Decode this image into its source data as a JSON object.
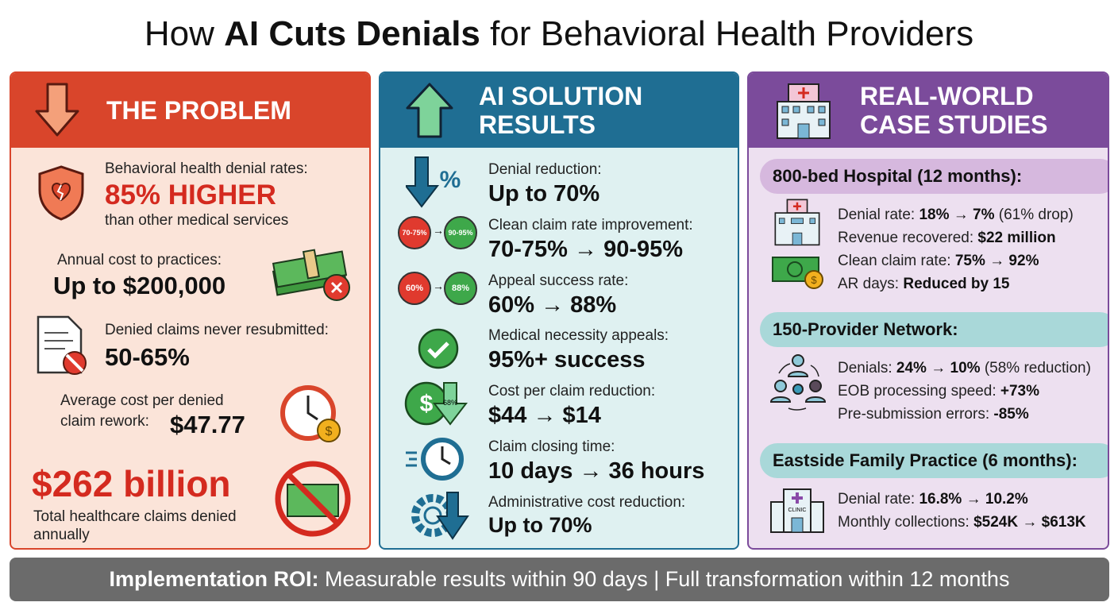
{
  "title": {
    "pre": "How ",
    "bold": "AI Cuts Denials",
    "post": " for Behavioral Health Providers"
  },
  "problem": {
    "header": "THE PROBLEM",
    "items": [
      {
        "label": "Behavioral health denial rates:",
        "value": "85% HIGHER",
        "sub": "than other medical services"
      },
      {
        "label": "Annual cost to practices:",
        "value": "Up to $200,000"
      },
      {
        "label": "Denied claims never resubmitted:",
        "value": "50-65%"
      },
      {
        "label": "Average cost per denied",
        "label2": "claim rework:",
        "value": "$47.77"
      },
      {
        "value": "$262 billion",
        "label": "Total healthcare claims denied",
        "label2": "annually"
      }
    ]
  },
  "solution": {
    "header1": "AI SOLUTION",
    "header2": "RESULTS",
    "items": [
      {
        "label": "Denial reduction:",
        "value": "Up to 70%"
      },
      {
        "label": "Clean claim rate improvement:",
        "value": "70-75% → 90-95%",
        "from": "70-75%",
        "to": "90-95%"
      },
      {
        "label": "Appeal success rate:",
        "value": "60% → 88%",
        "from": "60%",
        "to": "88%"
      },
      {
        "label": "Medical necessity appeals:",
        "value": "95%+ success"
      },
      {
        "label": "Cost per claim reduction:",
        "value": "$44 → $14",
        "badge": "68%"
      },
      {
        "label": "Claim closing time:",
        "value": "10 days → 36 hours"
      },
      {
        "label": "Administrative cost reduction:",
        "value": "Up to 70%"
      }
    ]
  },
  "cases": {
    "header1": "REAL-WORLD",
    "header2": "CASE STUDIES",
    "studies": [
      {
        "title": "800-bed Hospital (12 months):",
        "rows": [
          {
            "k": "Denial rate: ",
            "v": "18% → 7%",
            "x": " (61% drop)"
          },
          {
            "k": "Revenue recovered: ",
            "v": "$22 million",
            "x": ""
          },
          {
            "k": "Clean claim rate: ",
            "v": "75% → 92%",
            "x": ""
          },
          {
            "k": "AR days: ",
            "v": "Reduced by 15",
            "x": ""
          }
        ]
      },
      {
        "title": "150-Provider Network:",
        "rows": [
          {
            "k": "Denials: ",
            "v": "24% → 10%",
            "x": " (58% reduction)"
          },
          {
            "k": "EOB processing speed: ",
            "v": "+73%",
            "x": ""
          },
          {
            "k": "Pre-submission errors: ",
            "v": "-85%",
            "x": ""
          }
        ]
      },
      {
        "title": "Eastside Family Practice (6 months):",
        "clinic_sign": "CLINIC",
        "rows": [
          {
            "k": "Denial rate: ",
            "v": "16.8% → 10.2%",
            "x": ""
          },
          {
            "k": "Monthly collections: ",
            "v": "$524K → $613K",
            "x": ""
          }
        ]
      }
    ]
  },
  "footer": {
    "bold": "Implementation ROI:",
    "text": " Measurable results within 90 days | Full transformation within 12 months"
  },
  "colors": {
    "problem": "#d9452b",
    "solution": "#1f6e93",
    "cases": "#7b4b9b",
    "footer": "#6b6b6b"
  }
}
